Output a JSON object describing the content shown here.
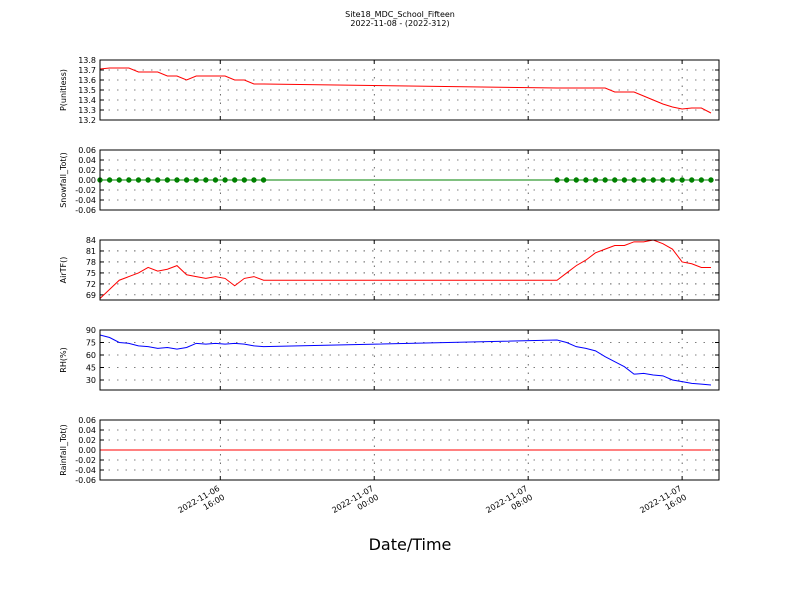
{
  "chart_data": [
    {
      "type": "line",
      "title": "Site18_MDC_School_Fifteen",
      "subtitle": "2022-11-08 - (2022-312)",
      "ylabel": "P(unitless)",
      "color": "#ff0000",
      "x": [
        "2022-11-06 09:45",
        "2022-11-06 10:15",
        "2022-11-06 10:45",
        "2022-11-06 11:15",
        "2022-11-06 11:45",
        "2022-11-06 12:15",
        "2022-11-06 12:45",
        "2022-11-06 13:15",
        "2022-11-06 13:45",
        "2022-11-06 14:15",
        "2022-11-06 14:45",
        "2022-11-06 15:15",
        "2022-11-06 15:45",
        "2022-11-06 16:15",
        "2022-11-06 16:45",
        "2022-11-06 17:15",
        "2022-11-06 17:45",
        "2022-11-06 18:15",
        "2022-11-07 09:30",
        "2022-11-07 10:00",
        "2022-11-07 10:30",
        "2022-11-07 11:00",
        "2022-11-07 11:30",
        "2022-11-07 12:00",
        "2022-11-07 12:30",
        "2022-11-07 13:00",
        "2022-11-07 13:30",
        "2022-11-07 14:00",
        "2022-11-07 14:30",
        "2022-11-07 15:00",
        "2022-11-07 15:30",
        "2022-11-07 16:00",
        "2022-11-07 16:30",
        "2022-11-07 17:00",
        "2022-11-07 17:30"
      ],
      "values": [
        13.71,
        13.72,
        13.72,
        13.72,
        13.68,
        13.68,
        13.68,
        13.64,
        13.64,
        13.6,
        13.64,
        13.64,
        13.64,
        13.64,
        13.6,
        13.6,
        13.56,
        13.56,
        13.52,
        13.52,
        13.52,
        13.52,
        13.52,
        13.52,
        13.48,
        13.48,
        13.48,
        13.44,
        13.4,
        13.36,
        13.33,
        13.31,
        13.32,
        13.32,
        13.27
      ],
      "xlim": [
        "2022-11-06 09:45",
        "2022-11-07 17:55"
      ],
      "ylim": [
        13.2,
        13.8
      ],
      "yticks": [
        13.2,
        13.3,
        13.4,
        13.5,
        13.6,
        13.7,
        13.8
      ]
    },
    {
      "type": "line",
      "ylabel": "Snowfall_Tot()",
      "color": "#008000",
      "marker": "o",
      "x": [
        "2022-11-06 09:45",
        "2022-11-06 10:15",
        "2022-11-06 10:45",
        "2022-11-06 11:15",
        "2022-11-06 11:45",
        "2022-11-06 12:15",
        "2022-11-06 12:45",
        "2022-11-06 13:15",
        "2022-11-06 13:45",
        "2022-11-06 14:15",
        "2022-11-06 14:45",
        "2022-11-06 15:15",
        "2022-11-06 15:45",
        "2022-11-06 16:15",
        "2022-11-06 16:45",
        "2022-11-06 17:15",
        "2022-11-06 17:45",
        "2022-11-06 18:15",
        "2022-11-07 09:30",
        "2022-11-07 10:00",
        "2022-11-07 10:30",
        "2022-11-07 11:00",
        "2022-11-07 11:30",
        "2022-11-07 12:00",
        "2022-11-07 12:30",
        "2022-11-07 13:00",
        "2022-11-07 13:30",
        "2022-11-07 14:00",
        "2022-11-07 14:30",
        "2022-11-07 15:00",
        "2022-11-07 15:30",
        "2022-11-07 16:00",
        "2022-11-07 16:30",
        "2022-11-07 17:00",
        "2022-11-07 17:30"
      ],
      "values": [
        0,
        0,
        0,
        0,
        0,
        0,
        0,
        0,
        0,
        0,
        0,
        0,
        0,
        0,
        0,
        0,
        0,
        0,
        0,
        0,
        0,
        0,
        0,
        0,
        0,
        0,
        0,
        0,
        0,
        0,
        0,
        0,
        0,
        0,
        0
      ],
      "xlim": [
        "2022-11-06 09:45",
        "2022-11-07 17:55"
      ],
      "ylim": [
        -0.06,
        0.06
      ],
      "yticks": [
        -0.06,
        -0.04,
        -0.02,
        {
          "value": 0,
          "label": "0.00"
        },
        0.02,
        0.04,
        0.06
      ]
    },
    {
      "type": "line",
      "ylabel": "AirTF()",
      "color": "#ff0000",
      "x": [
        "2022-11-06 09:45",
        "2022-11-06 10:15",
        "2022-11-06 10:45",
        "2022-11-06 11:15",
        "2022-11-06 11:45",
        "2022-11-06 12:15",
        "2022-11-06 12:45",
        "2022-11-06 13:15",
        "2022-11-06 13:45",
        "2022-11-06 14:15",
        "2022-11-06 14:45",
        "2022-11-06 15:15",
        "2022-11-06 15:45",
        "2022-11-06 16:15",
        "2022-11-06 16:45",
        "2022-11-06 17:15",
        "2022-11-06 17:45",
        "2022-11-06 18:15",
        "2022-11-07 09:30",
        "2022-11-07 10:00",
        "2022-11-07 10:30",
        "2022-11-07 11:00",
        "2022-11-07 11:30",
        "2022-11-07 12:00",
        "2022-11-07 12:30",
        "2022-11-07 13:00",
        "2022-11-07 13:30",
        "2022-11-07 14:00",
        "2022-11-07 14:30",
        "2022-11-07 15:00",
        "2022-11-07 15:30",
        "2022-11-07 16:00",
        "2022-11-07 16:30",
        "2022-11-07 17:00",
        "2022-11-07 17:30"
      ],
      "values": [
        68,
        70.5,
        73,
        74,
        75,
        76.5,
        75.5,
        76,
        77,
        74.5,
        74,
        73.5,
        74,
        73.5,
        71.5,
        73.5,
        74,
        73,
        73,
        75,
        77,
        78.5,
        80.5,
        81.5,
        82.5,
        82.5,
        83.5,
        83.5,
        84,
        83,
        81.5,
        78,
        77.5,
        76.5,
        76.5
      ],
      "xlim": [
        "2022-11-06 09:45",
        "2022-11-07 17:55"
      ],
      "ylim": [
        67.6,
        84
      ],
      "yticks": [
        69,
        72,
        75,
        78,
        81,
        84
      ]
    },
    {
      "type": "line",
      "ylabel": "RH(%)",
      "color": "#0000ff",
      "x": [
        "2022-11-06 09:45",
        "2022-11-06 10:15",
        "2022-11-06 10:45",
        "2022-11-06 11:15",
        "2022-11-06 11:45",
        "2022-11-06 12:15",
        "2022-11-06 12:45",
        "2022-11-06 13:15",
        "2022-11-06 13:45",
        "2022-11-06 14:15",
        "2022-11-06 14:45",
        "2022-11-06 15:15",
        "2022-11-06 15:45",
        "2022-11-06 16:15",
        "2022-11-06 16:45",
        "2022-11-06 17:15",
        "2022-11-06 17:45",
        "2022-11-06 18:15",
        "2022-11-07 09:30",
        "2022-11-07 10:00",
        "2022-11-07 10:30",
        "2022-11-07 11:00",
        "2022-11-07 11:30",
        "2022-11-07 12:00",
        "2022-11-07 12:30",
        "2022-11-07 13:00",
        "2022-11-07 13:30",
        "2022-11-07 14:00",
        "2022-11-07 14:30",
        "2022-11-07 15:00",
        "2022-11-07 15:30",
        "2022-11-07 16:00",
        "2022-11-07 16:30",
        "2022-11-07 17:00",
        "2022-11-07 17:30"
      ],
      "values": [
        84,
        81,
        75,
        74,
        71,
        70,
        68,
        69,
        67,
        69,
        74,
        73,
        74,
        73,
        74,
        73,
        71,
        70,
        78,
        75,
        70,
        68,
        65,
        58,
        52,
        46,
        37,
        38,
        36,
        35,
        30,
        28,
        26,
        25,
        24
      ],
      "xlim": [
        "2022-11-06 09:45",
        "2022-11-07 17:55"
      ],
      "ylim": [
        18,
        90
      ],
      "yticks": [
        30,
        45,
        60,
        75,
        90
      ]
    },
    {
      "type": "line",
      "ylabel": "Rainfall_Tot()",
      "xlabel": "Date/Time",
      "color": "#ff0000",
      "x": [
        "2022-11-06 09:45",
        "2022-11-06 10:15",
        "2022-11-06 10:45",
        "2022-11-06 11:15",
        "2022-11-06 11:45",
        "2022-11-06 12:15",
        "2022-11-06 12:45",
        "2022-11-06 13:15",
        "2022-11-06 13:45",
        "2022-11-06 14:15",
        "2022-11-06 14:45",
        "2022-11-06 15:15",
        "2022-11-06 15:45",
        "2022-11-06 16:15",
        "2022-11-06 16:45",
        "2022-11-06 17:15",
        "2022-11-06 17:45",
        "2022-11-06 18:15",
        "2022-11-07 09:30",
        "2022-11-07 10:00",
        "2022-11-07 10:30",
        "2022-11-07 11:00",
        "2022-11-07 11:30",
        "2022-11-07 12:00",
        "2022-11-07 12:30",
        "2022-11-07 13:00",
        "2022-11-07 13:30",
        "2022-11-07 14:00",
        "2022-11-07 14:30",
        "2022-11-07 15:00",
        "2022-11-07 15:30",
        "2022-11-07 16:00",
        "2022-11-07 16:30",
        "2022-11-07 17:00",
        "2022-11-07 17:30"
      ],
      "values": [
        0,
        0,
        0,
        0,
        0,
        0,
        0,
        0,
        0,
        0,
        0,
        0,
        0,
        0,
        0,
        0,
        0,
        0,
        0,
        0,
        0,
        0,
        0,
        0,
        0,
        0,
        0,
        0,
        0,
        0,
        0,
        0,
        0,
        0,
        0
      ],
      "xlim": [
        "2022-11-06 09:45",
        "2022-11-07 17:55"
      ],
      "ylim": [
        -0.06,
        0.06
      ],
      "yticks": [
        -0.06,
        -0.04,
        -0.02,
        {
          "value": 0,
          "label": "0.00"
        },
        0.02,
        0.04,
        0.06
      ],
      "xticks": [
        "2022-11-06 16:00",
        "2022-11-07 00:00",
        "2022-11-07 08:00",
        "2022-11-07 16:00"
      ]
    }
  ]
}
